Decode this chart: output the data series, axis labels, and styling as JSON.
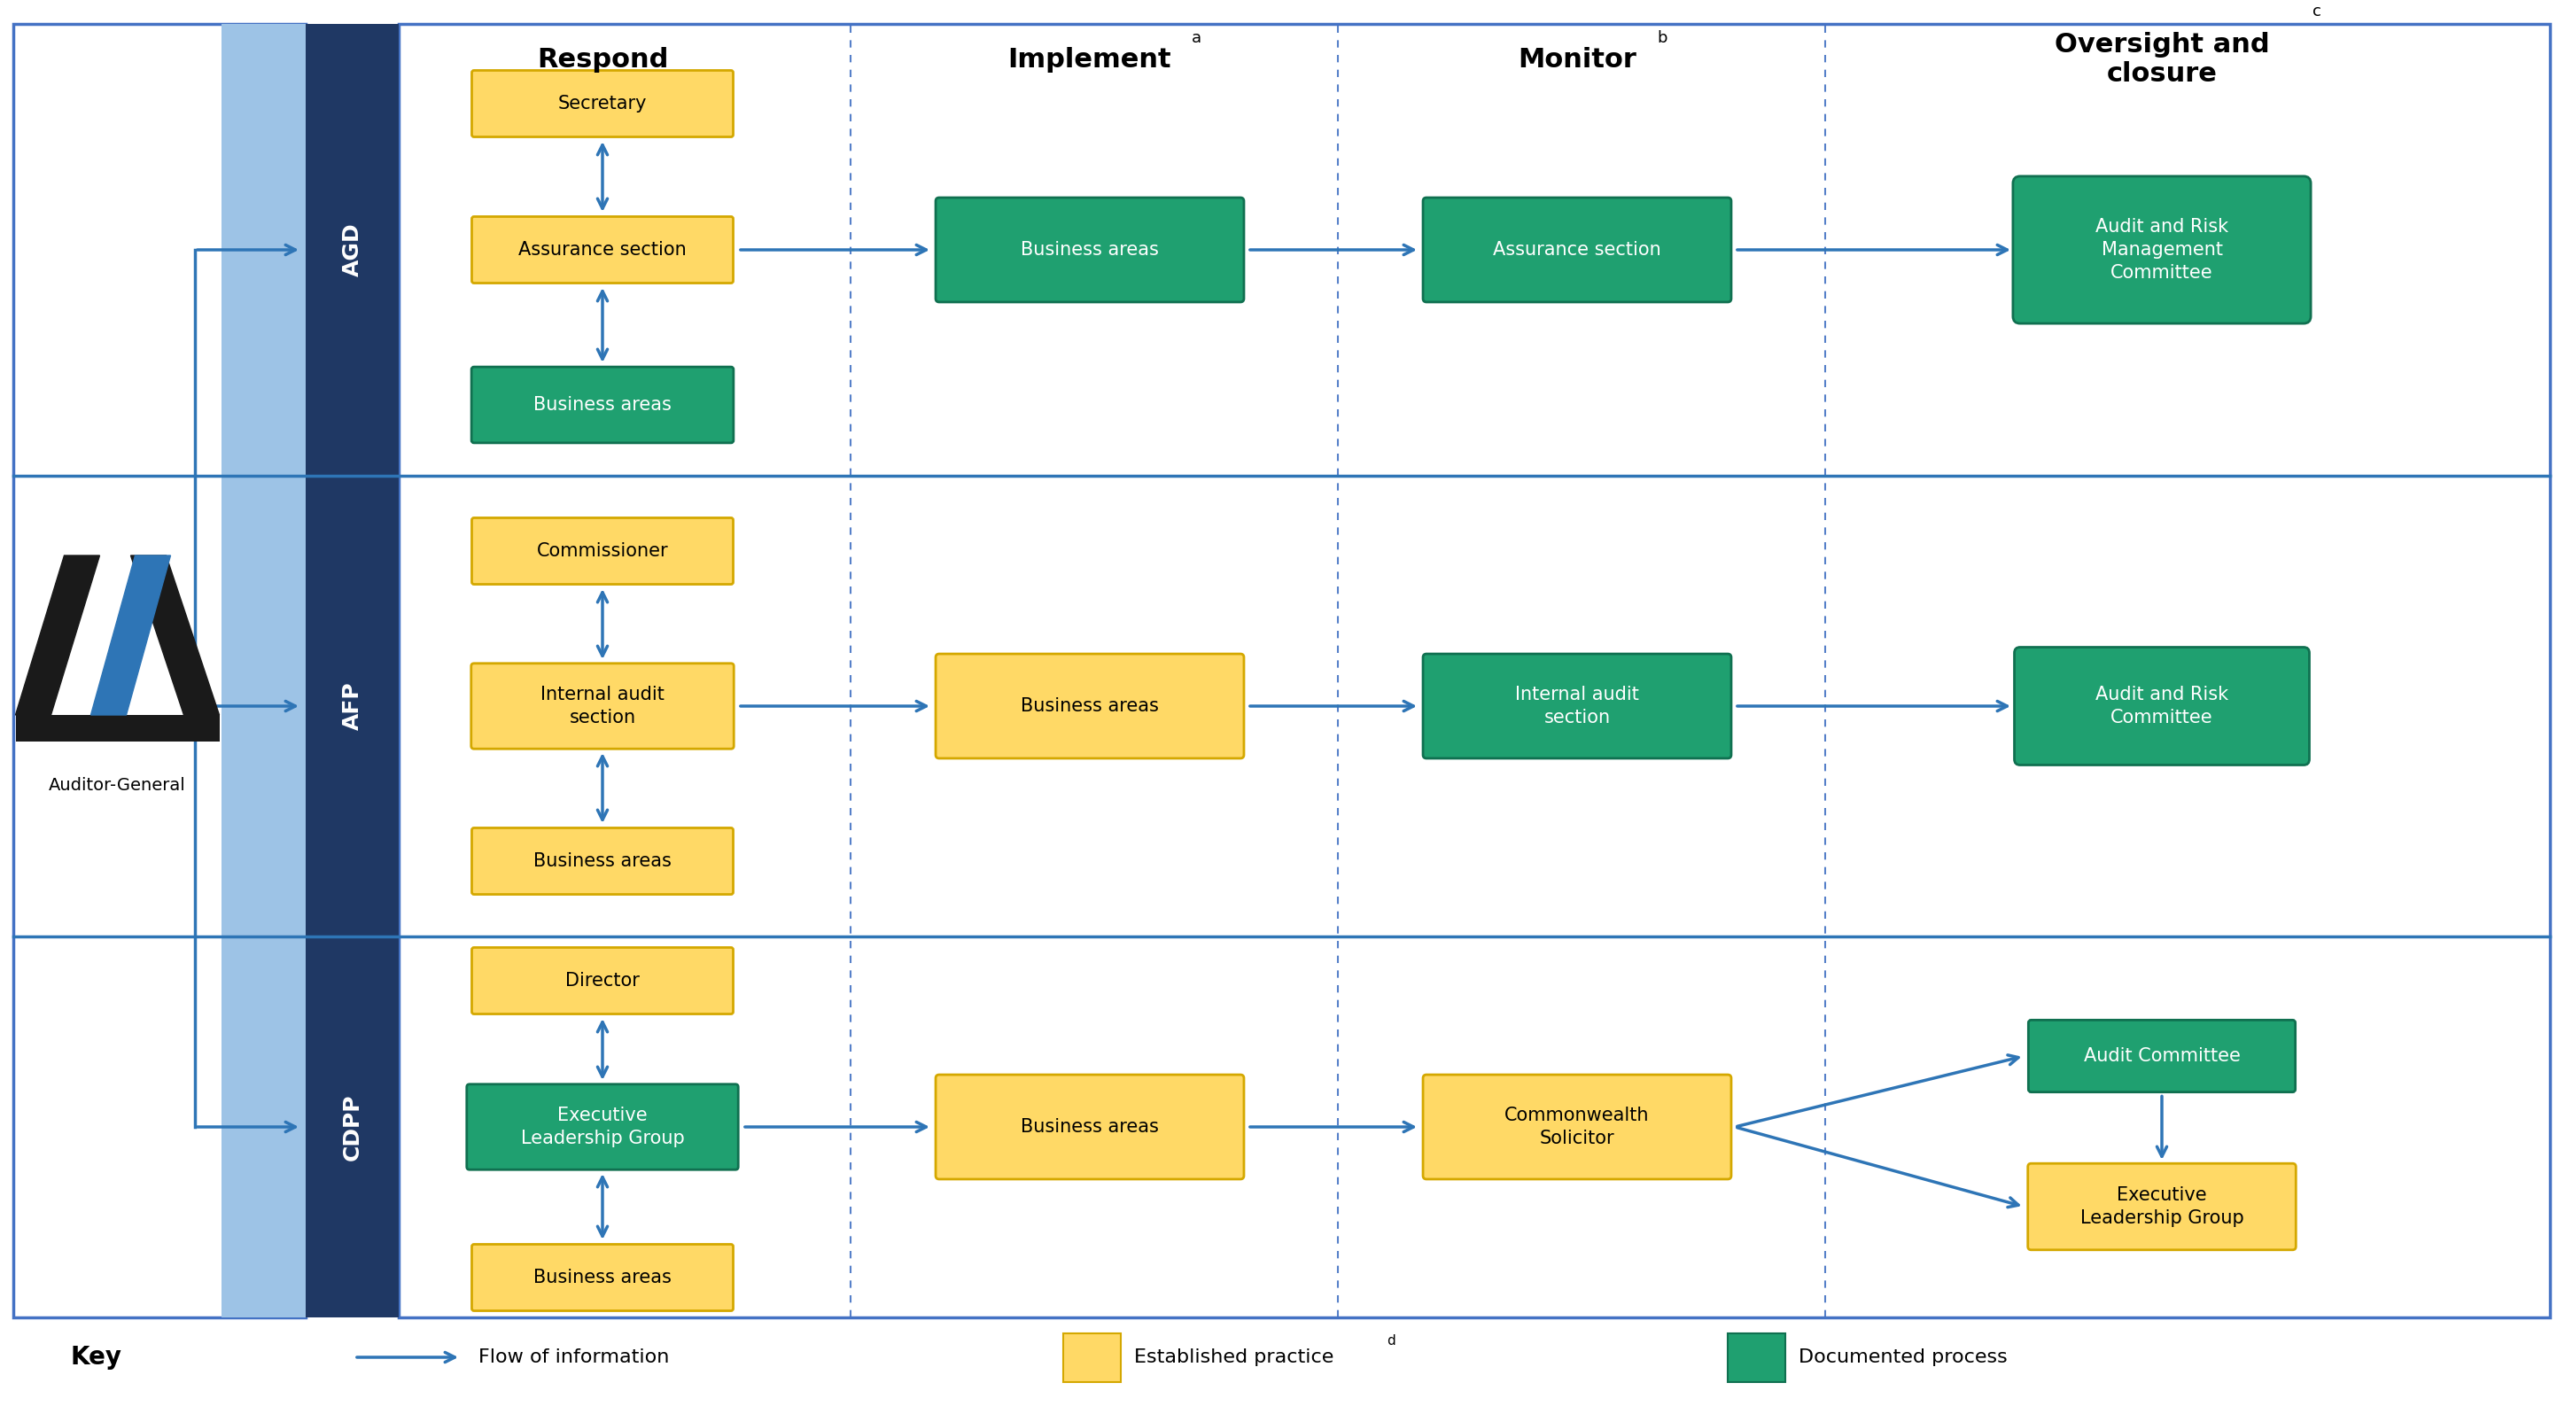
{
  "bg_color": "#ffffff",
  "outer_border_color": "#4472C4",
  "dark_blue": "#1F3864",
  "med_blue": "#2E75B6",
  "light_blue": "#9DC3E6",
  "gold": "#FFD966",
  "gold_border": "#D4A800",
  "green": "#1FA070",
  "green_dark": "#107050",
  "arrow_color": "#2E75B6",
  "dashed_color": "#4472C4",
  "title_respond": "Respond",
  "title_implement": "Implement",
  "title_implement_super": "a",
  "title_monitor": "Monitor",
  "title_monitor_super": "b",
  "title_oversight": "Oversight and\nclosure",
  "title_oversight_super": "c",
  "agd_respond_top": "Secretary",
  "agd_respond_mid": "Assurance section",
  "agd_respond_bot": "Business areas",
  "agd_implement": "Business areas",
  "agd_monitor": "Assurance section",
  "agd_oversight": "Audit and Risk\nManagement\nCommittee",
  "afp_respond_top": "Commissioner",
  "afp_respond_mid": "Internal audit\nsection",
  "afp_respond_bot": "Business areas",
  "afp_implement": "Business areas",
  "afp_monitor": "Internal audit\nsection",
  "afp_oversight": "Audit and Risk\nCommittee",
  "cdpp_respond_top": "Director",
  "cdpp_respond_mid": "Executive\nLeadership Group",
  "cdpp_respond_bot": "Business areas",
  "cdpp_implement": "Business areas",
  "cdpp_monitor": "Commonwealth\nSolicitor",
  "cdpp_oversight_top": "Audit Committee",
  "cdpp_oversight_bot": "Executive\nLeadership Group",
  "auditor_label": "Auditor-General",
  "key_label": "Key",
  "key_arrow_label": "Flow of information",
  "key_gold_label": "Established practice",
  "key_gold_super": "d",
  "key_green_label": "Documented process",
  "font_size_header": 22,
  "font_size_entity": 18,
  "font_size_box": 15,
  "font_size_key": 16,
  "font_size_auditor": 14
}
